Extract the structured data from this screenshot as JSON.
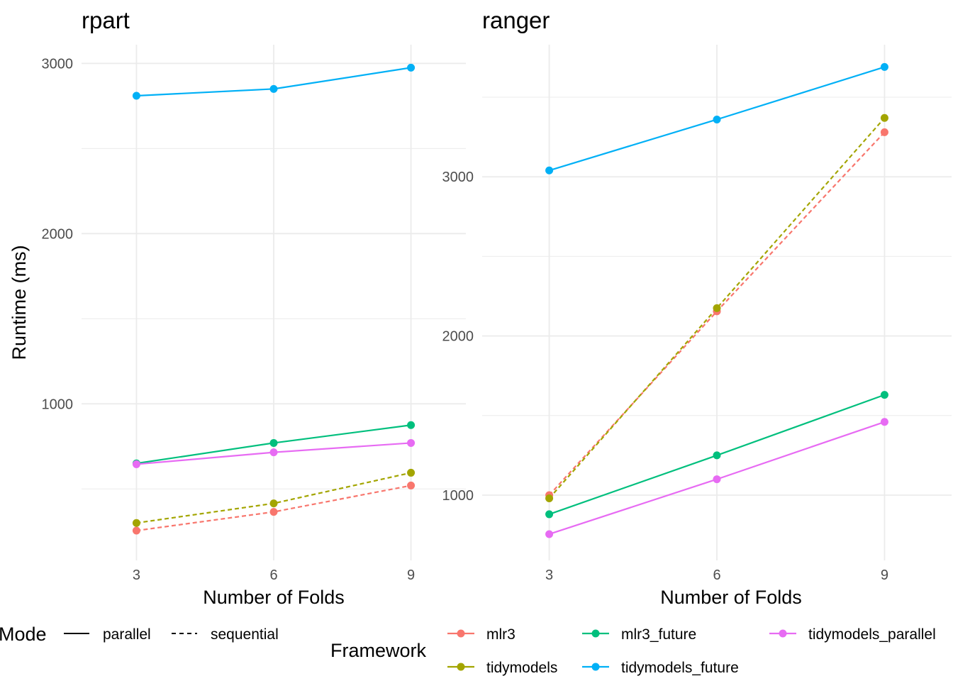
{
  "chart_data": [
    {
      "type": "line",
      "title": "rpart",
      "xlabel": "Number of Folds",
      "ylabel": "Runtime (ms)",
      "x": [
        3,
        6,
        9
      ],
      "x_ticks": [
        "3",
        "6",
        "9"
      ],
      "y_ticks": [
        "1000",
        "2000",
        "3000"
      ],
      "y_tick_values": [
        1000,
        2000,
        3000
      ],
      "xlim": [
        1.8,
        10.2
      ],
      "ylim": [
        80,
        3110
      ],
      "grid": true,
      "series": [
        {
          "name": "mlr3",
          "mode": "sequential",
          "values": [
            255,
            365,
            520
          ]
        },
        {
          "name": "tidymodels",
          "mode": "sequential",
          "values": [
            300,
            415,
            595
          ]
        },
        {
          "name": "mlr3_future",
          "mode": "parallel",
          "values": [
            650,
            770,
            875
          ]
        },
        {
          "name": "tidymodels_future",
          "mode": "parallel",
          "values": [
            2810,
            2850,
            2975
          ]
        },
        {
          "name": "tidymodels_parallel",
          "mode": "parallel",
          "values": [
            645,
            715,
            770
          ]
        }
      ]
    },
    {
      "type": "line",
      "title": "ranger",
      "xlabel": "Number of Folds",
      "ylabel": "",
      "x": [
        3,
        6,
        9
      ],
      "x_ticks": [
        "3",
        "6",
        "9"
      ],
      "y_ticks": [
        "1000",
        "2000",
        "3000"
      ],
      "y_tick_values": [
        1000,
        2000,
        3000
      ],
      "xlim": [
        1.8,
        10.2
      ],
      "ylim": [
        590,
        3830
      ],
      "grid": true,
      "series": [
        {
          "name": "mlr3",
          "mode": "sequential",
          "values": [
            1000,
            2155,
            3280
          ]
        },
        {
          "name": "tidymodels",
          "mode": "sequential",
          "values": [
            980,
            2175,
            3370
          ]
        },
        {
          "name": "mlr3_future",
          "mode": "parallel",
          "values": [
            880,
            1250,
            1630
          ]
        },
        {
          "name": "tidymodels_future",
          "mode": "parallel",
          "values": [
            3040,
            3360,
            3690
          ]
        },
        {
          "name": "tidymodels_parallel",
          "mode": "parallel",
          "values": [
            755,
            1100,
            1460
          ]
        }
      ]
    }
  ],
  "colors": {
    "mlr3": "#F8766D",
    "tidymodels": "#A3A500",
    "mlr3_future": "#00BF7D",
    "tidymodels_future": "#00B0F6",
    "tidymodels_parallel": "#E76BF3"
  },
  "legend": {
    "placement": "bottom",
    "mode": {
      "title": "Mode",
      "items": [
        {
          "label": "parallel",
          "dash": "solid"
        },
        {
          "label": "sequential",
          "dash": "dashed"
        }
      ]
    },
    "framework": {
      "title": "Framework",
      "items": [
        {
          "label": "mlr3",
          "key": "mlr3"
        },
        {
          "label": "mlr3_future",
          "key": "mlr3_future"
        },
        {
          "label": "tidymodels_parallel",
          "key": "tidymodels_parallel"
        },
        {
          "label": "tidymodels",
          "key": "tidymodels"
        },
        {
          "label": "tidymodels_future",
          "key": "tidymodels_future"
        }
      ]
    }
  }
}
